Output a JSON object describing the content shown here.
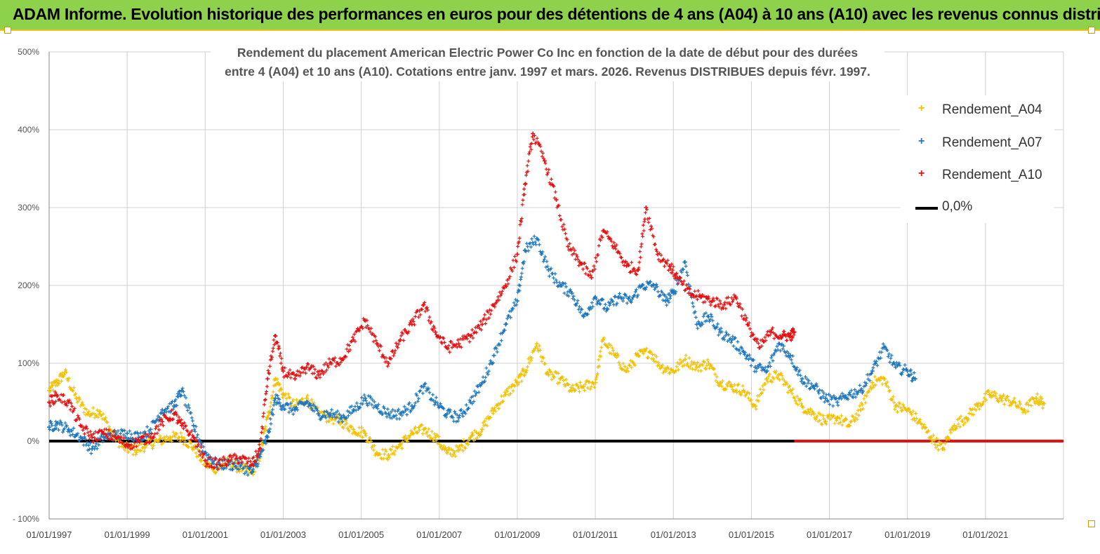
{
  "page_title": "ADAM Informe. Evolution historique des performances en euros pour des détentions de 4 ans (A04) à 10 ans (A10) avec les revenus connus distribués",
  "chart_data": {
    "type": "scatter",
    "title_line1": "Rendement du placement American Electric Power Co Inc en fonction de la date de début pour des durées",
    "title_line2": "entre 4 (A04) et 10 ans (A10). Cotations entre janv. 1997 et mars. 2026. Revenus DISTRIBUES depuis févr. 1997.",
    "x_ticks": [
      "01/01/1997",
      "01/01/1999",
      "01/01/2001",
      "01/01/2003",
      "01/01/2005",
      "01/01/2007",
      "01/01/2009",
      "01/01/2011",
      "01/01/2013",
      "01/01/2015",
      "01/01/2017",
      "01/01/2019",
      "01/01/2021"
    ],
    "x_range": [
      "01/01/1997",
      "01/01/2023"
    ],
    "y_ticks": [
      "- 100%",
      "0%",
      "100%",
      "200%",
      "300%",
      "400%",
      "500%"
    ],
    "ylim": [
      -100,
      500
    ],
    "grid": true,
    "legend_position": "right",
    "series": [
      {
        "name": "Rendement_A04",
        "color": "#f5c000",
        "x": [
          1997.0,
          1997.2,
          1997.4,
          1997.7,
          1998.0,
          1998.3,
          1998.6,
          1998.9,
          1999.2,
          1999.5,
          1999.8,
          2000.1,
          2000.4,
          2000.7,
          2001.0,
          2001.3,
          2001.6,
          2001.9,
          2002.2,
          2002.4,
          2002.6,
          2002.8,
          2003.0,
          2003.3,
          2003.6,
          2003.9,
          2004.2,
          2004.5,
          2004.8,
          2005.1,
          2005.4,
          2005.7,
          2006.0,
          2006.3,
          2006.6,
          2006.9,
          2007.2,
          2007.5,
          2007.8,
          2008.1,
          2008.4,
          2008.7,
          2009.0,
          2009.2,
          2009.5,
          2009.8,
          2010.1,
          2010.4,
          2010.7,
          2011.0,
          2011.2,
          2011.5,
          2011.8,
          2012.1,
          2012.4,
          2012.7,
          2013.0,
          2013.3,
          2013.6,
          2013.9,
          2014.2,
          2014.5,
          2014.8,
          2015.1,
          2015.4,
          2015.7,
          2016.0,
          2016.3,
          2016.6,
          2016.9,
          2017.2,
          2017.5,
          2017.8,
          2018.1,
          2018.4,
          2018.7,
          2019.0,
          2019.3,
          2019.6,
          2019.9,
          2020.2,
          2020.5,
          2020.8,
          2021.1,
          2021.4,
          2021.7,
          2022.0,
          2022.3,
          2022.5
        ],
        "values": [
          65,
          75,
          88,
          55,
          35,
          38,
          12,
          -8,
          -12,
          -5,
          0,
          5,
          5,
          -8,
          -30,
          -35,
          -28,
          -35,
          -40,
          -20,
          30,
          80,
          60,
          45,
          55,
          35,
          30,
          25,
          15,
          10,
          -15,
          -18,
          -5,
          10,
          15,
          5,
          -15,
          -12,
          5,
          15,
          40,
          60,
          75,
          90,
          125,
          85,
          80,
          65,
          70,
          75,
          130,
          110,
          90,
          110,
          115,
          95,
          90,
          105,
          95,
          100,
          75,
          70,
          65,
          45,
          80,
          85,
          65,
          45,
          35,
          25,
          30,
          20,
          40,
          75,
          80,
          45,
          40,
          25,
          5,
          -10,
          20,
          30,
          45,
          60,
          55,
          50,
          40,
          55,
          48
        ]
      },
      {
        "name": "Rendement_A07",
        "color": "#1f77c0",
        "x": [
          1997.0,
          1997.2,
          1997.5,
          1997.8,
          1998.1,
          1998.4,
          1998.7,
          1999.0,
          1999.3,
          1999.6,
          1999.9,
          2000.2,
          2000.4,
          2000.7,
          2001.0,
          2001.3,
          2001.6,
          2001.9,
          2002.2,
          2002.4,
          2002.6,
          2002.8,
          2003.0,
          2003.3,
          2003.6,
          2003.9,
          2004.2,
          2004.5,
          2004.8,
          2005.1,
          2005.4,
          2005.7,
          2006.0,
          2006.3,
          2006.6,
          2006.9,
          2007.2,
          2007.5,
          2007.8,
          2008.1,
          2008.4,
          2008.7,
          2009.0,
          2009.2,
          2009.5,
          2009.8,
          2010.1,
          2010.4,
          2010.7,
          2011.0,
          2011.3,
          2011.6,
          2011.9,
          2012.2,
          2012.5,
          2012.8,
          2013.0,
          2013.3,
          2013.6,
          2013.9,
          2014.2,
          2014.5,
          2014.8,
          2015.1,
          2015.4,
          2015.7,
          2016.0,
          2016.3,
          2016.6,
          2016.9,
          2017.2,
          2017.5,
          2017.8,
          2018.1,
          2018.4,
          2018.7,
          2019.0,
          2019.2
        ],
        "values": [
          18,
          22,
          15,
          5,
          -10,
          5,
          8,
          10,
          5,
          15,
          40,
          45,
          65,
          20,
          -15,
          -30,
          -30,
          -32,
          -40,
          -20,
          5,
          55,
          45,
          40,
          50,
          35,
          35,
          30,
          40,
          55,
          45,
          35,
          35,
          45,
          70,
          50,
          35,
          30,
          50,
          75,
          110,
          150,
          180,
          245,
          260,
          220,
          200,
          190,
          160,
          185,
          170,
          185,
          180,
          200,
          200,
          180,
          190,
          230,
          150,
          160,
          140,
          130,
          115,
          95,
          90,
          125,
          110,
          80,
          70,
          55,
          50,
          60,
          65,
          90,
          120,
          95,
          90,
          80
        ]
      },
      {
        "name": "Rendement_A10",
        "color": "#e81010",
        "x": [
          1997.0,
          1997.2,
          1997.5,
          1997.8,
          1998.1,
          1998.4,
          1998.7,
          1999.0,
          1999.3,
          1999.6,
          1999.9,
          2000.2,
          2000.4,
          2000.7,
          2001.0,
          2001.3,
          2001.6,
          2001.9,
          2002.2,
          2002.4,
          2002.6,
          2002.8,
          2003.0,
          2003.3,
          2003.6,
          2003.9,
          2004.2,
          2004.5,
          2004.8,
          2005.1,
          2005.4,
          2005.7,
          2006.0,
          2006.3,
          2006.6,
          2006.9,
          2007.2,
          2007.5,
          2007.8,
          2008.1,
          2008.4,
          2008.7,
          2009.0,
          2009.2,
          2009.4,
          2009.7,
          2010.0,
          2010.3,
          2010.6,
          2010.9,
          2011.2,
          2011.5,
          2011.8,
          2012.1,
          2012.3,
          2012.6,
          2012.9,
          2013.1,
          2013.4,
          2013.7,
          2014.0,
          2014.3,
          2014.6,
          2014.9,
          2015.2,
          2015.5,
          2015.8,
          2016.0,
          2016.1
        ],
        "values": [
          50,
          58,
          50,
          20,
          5,
          10,
          5,
          -5,
          0,
          5,
          25,
          35,
          20,
          5,
          -25,
          -30,
          -25,
          -22,
          -30,
          -10,
          80,
          135,
          90,
          80,
          95,
          85,
          100,
          105,
          130,
          155,
          125,
          100,
          130,
          150,
          175,
          140,
          120,
          125,
          135,
          150,
          175,
          200,
          240,
          330,
          395,
          360,
          310,
          250,
          230,
          210,
          270,
          250,
          225,
          220,
          300,
          240,
          225,
          210,
          190,
          185,
          180,
          175,
          185,
          150,
          120,
          140,
          135,
          135,
          140
        ]
      },
      {
        "name": "0,0%",
        "color": "#000000",
        "x": [
          1997.0,
          2016.1
        ],
        "values": [
          0,
          0
        ]
      }
    ],
    "zero_tail": {
      "color": "#e81010",
      "x": [
        2016.1,
        2023.0
      ],
      "values": [
        0,
        0
      ]
    }
  }
}
